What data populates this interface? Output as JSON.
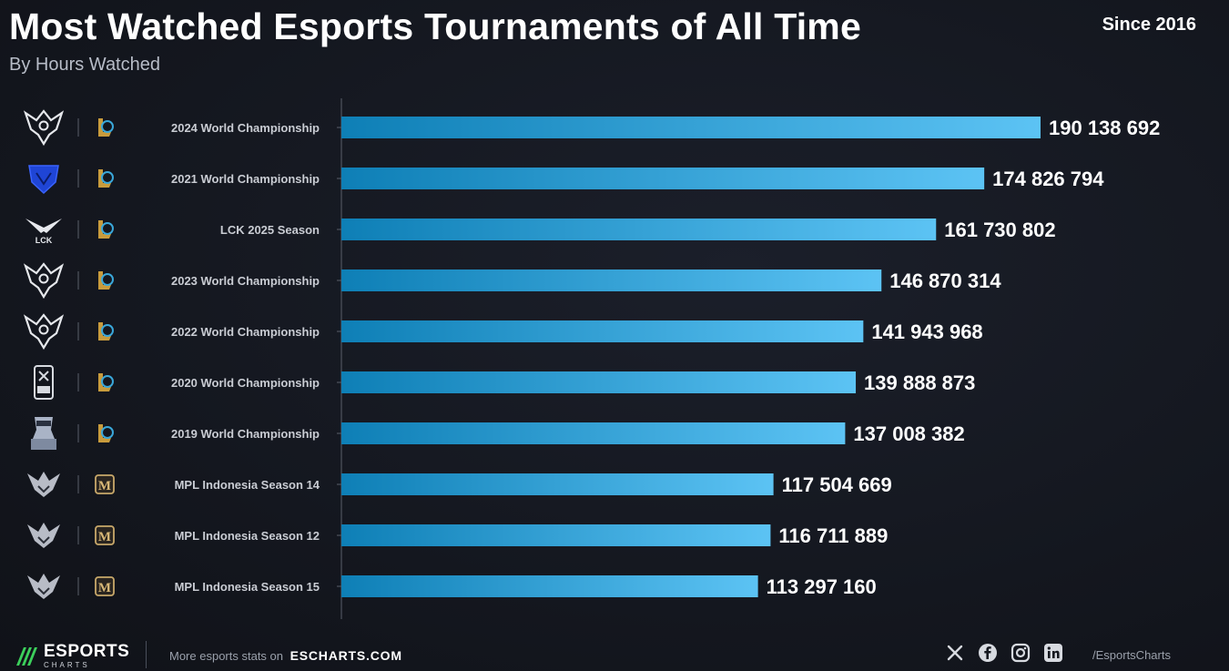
{
  "header": {
    "title": "Most Watched Esports Tournaments of All Time",
    "subtitle": "By Hours Watched",
    "period": "Since 2016"
  },
  "chart_data": {
    "type": "bar",
    "orientation": "horizontal",
    "title": "Most Watched Esports Tournaments of All Time",
    "subtitle": "By Hours Watched",
    "categories": [
      "2024 World Championship",
      "2021 World Championship",
      "LCK 2025 Season",
      "2023 World Championship",
      "2022 World Championship",
      "2020 World Championship",
      "2019 World Championship",
      "MPL Indonesia Season 14",
      "MPL Indonesia Season 12",
      "MPL Indonesia Season 15"
    ],
    "values": [
      190138692,
      174826794,
      161730802,
      146870314,
      141943968,
      139888873,
      137008382,
      117504669,
      116711889,
      113297160
    ],
    "value_labels": [
      "190 138 692",
      "174 826 794",
      "161 730 802",
      "146 870 314",
      "141 943 968",
      "139 888 873",
      "137 008 382",
      "117 504 669",
      "116 711 889",
      "113 297 160"
    ],
    "game_icons": [
      "lol-icon",
      "lol-icon",
      "lol-icon",
      "lol-icon",
      "lol-icon",
      "lol-icon",
      "lol-icon",
      "mlbb-icon",
      "mlbb-icon",
      "mlbb-icon"
    ],
    "league_icons": [
      "worlds-2024-logo-icon",
      "worlds-2021-logo-icon",
      "lck-logo-icon",
      "worlds-2023-logo-icon",
      "worlds-2022-logo-icon",
      "worlds-2020-logo-icon",
      "worlds-2019-logo-icon",
      "mpl-id-logo-icon",
      "mpl-id-logo-icon",
      "mpl-id-logo-icon"
    ],
    "xlim": [
      0,
      195000000
    ],
    "grid": false,
    "colors": {
      "bar_start": "#0e7fb6",
      "bar_end": "#5cc3f4",
      "background": "#14171f"
    }
  },
  "footer": {
    "brand": "ESPORTS",
    "brand_sub": "CHARTS",
    "more_text": "More esports stats on",
    "site": "ESCHARTS.COM",
    "handle": "/EsportsCharts",
    "socials": [
      "x-icon",
      "facebook-icon",
      "instagram-icon",
      "linkedin-icon"
    ]
  }
}
